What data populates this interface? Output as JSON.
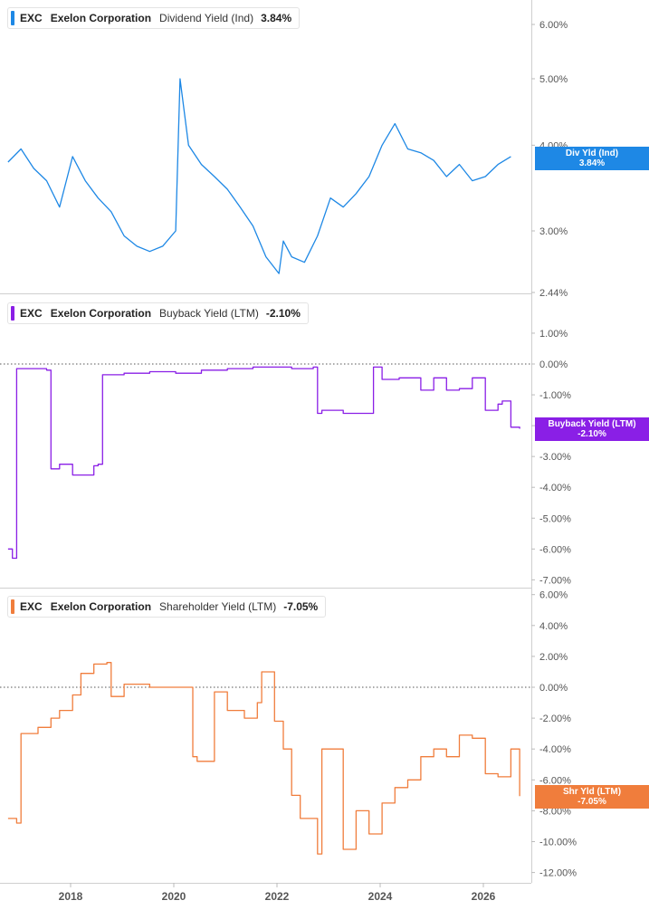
{
  "colors": {
    "dividend": "#1e88e5",
    "buyback": "#8a1fe6",
    "shareholder": "#f07d3c"
  },
  "legends": [
    {
      "ticker": "EXC",
      "company": "Exelon Corporation",
      "metric": "Dividend Yield (Ind)",
      "value": "3.84%"
    },
    {
      "ticker": "EXC",
      "company": "Exelon Corporation",
      "metric": "Buyback Yield (LTM)",
      "value": "-2.10%"
    },
    {
      "ticker": "EXC",
      "company": "Exelon Corporation",
      "metric": "Shareholder Yield (LTM)",
      "value": "-7.05%"
    }
  ],
  "tags": [
    {
      "name": "Div Yld (Ind)",
      "value": "3.84%"
    },
    {
      "name": "Buyback Yield (LTM)",
      "value": "-2.10%"
    },
    {
      "name": "Shr Yld (LTM)",
      "value": "-7.05%"
    }
  ],
  "chart_data": [
    {
      "type": "line",
      "title": "Dividend Yield (Ind)",
      "scale": "log",
      "yticks": [
        "6.00%",
        "5.00%",
        "4.00%",
        "3.00%",
        "2.44%"
      ],
      "ytick_values": [
        6.0,
        5.0,
        4.0,
        3.0,
        2.44
      ],
      "ylim": [
        2.44,
        6.6
      ],
      "x": [
        "2016-10",
        "2017-01",
        "2017-04",
        "2017-07",
        "2017-10",
        "2018-01",
        "2018-04",
        "2018-07",
        "2018-10",
        "2019-01",
        "2019-04",
        "2019-07",
        "2019-10",
        "2020-01",
        "2020-02",
        "2020-04",
        "2020-07",
        "2020-10",
        "2021-01",
        "2021-04",
        "2021-07",
        "2021-10",
        "2022-01",
        "2022-02",
        "2022-04",
        "2022-07",
        "2022-10",
        "2023-01",
        "2023-04",
        "2023-07",
        "2023-10",
        "2024-01",
        "2024-04",
        "2024-07",
        "2024-10",
        "2025-01",
        "2025-04",
        "2025-07",
        "2025-10",
        "2026-01",
        "2026-04",
        "2026-07"
      ],
      "series": [
        {
          "values": [
            3.78,
            3.95,
            3.7,
            3.55,
            3.25,
            3.85,
            3.55,
            3.35,
            3.2,
            2.95,
            2.85,
            2.8,
            2.85,
            3.0,
            5.0,
            4.0,
            3.75,
            3.6,
            3.45,
            3.25,
            3.05,
            2.75,
            2.6,
            2.9,
            2.75,
            2.7,
            2.95,
            3.35,
            3.25,
            3.4,
            3.6,
            4.0,
            4.3,
            3.95,
            3.9,
            3.8,
            3.6,
            3.75,
            3.55,
            3.6,
            3.75,
            3.85
          ]
        }
      ]
    },
    {
      "type": "line",
      "title": "Buyback Yield (LTM)",
      "yticks": [
        "1.00%",
        "0.00%",
        "-1.00%",
        "-2.00%",
        "-3.00%",
        "-4.00%",
        "-5.00%",
        "-6.00%",
        "-7.00%"
      ],
      "ylim": [
        -7.0,
        1.0
      ],
      "zero_line": true,
      "x": [
        "2016-10",
        "2016-11",
        "2016-12",
        "2017-01",
        "2017-07",
        "2017-08",
        "2017-10",
        "2018-01",
        "2018-06",
        "2018-07",
        "2018-08",
        "2019-01",
        "2019-07",
        "2020-01",
        "2020-07",
        "2021-01",
        "2021-07",
        "2022-01",
        "2022-04",
        "2022-09",
        "2022-10",
        "2022-11",
        "2023-04",
        "2023-10",
        "2023-11",
        "2024-01",
        "2024-05",
        "2024-10",
        "2025-01",
        "2025-04",
        "2025-07",
        "2025-10",
        "2026-01",
        "2026-04",
        "2026-05",
        "2026-07",
        "2026-09"
      ],
      "series": [
        {
          "values": [
            -6.0,
            -6.3,
            -0.15,
            -0.15,
            -0.2,
            -3.4,
            -3.25,
            -3.6,
            -3.3,
            -3.25,
            -0.35,
            -0.3,
            -0.25,
            -0.3,
            -0.2,
            -0.15,
            -0.1,
            -0.1,
            -0.15,
            -0.1,
            -1.6,
            -1.5,
            -1.6,
            -1.6,
            -0.1,
            -0.5,
            -0.45,
            -0.85,
            -0.45,
            -0.85,
            -0.8,
            -0.45,
            -1.5,
            -1.3,
            -1.2,
            -2.05,
            -2.1
          ]
        }
      ]
    },
    {
      "type": "line",
      "title": "Shareholder Yield (LTM)",
      "yticks": [
        "6.00%",
        "4.00%",
        "2.00%",
        "0.00%",
        "-2.00%",
        "-4.00%",
        "-6.00%",
        "-8.00%",
        "-10.00%",
        "-12.00%"
      ],
      "ylim": [
        -12.0,
        6.0
      ],
      "zero_line": true,
      "x": [
        "2016-10",
        "2016-12",
        "2017-01",
        "2017-05",
        "2017-08",
        "2017-10",
        "2018-01",
        "2018-03",
        "2018-06",
        "2018-09",
        "2018-10",
        "2019-01",
        "2019-07",
        "2020-01",
        "2020-05",
        "2020-06",
        "2020-10",
        "2021-01",
        "2021-05",
        "2021-08",
        "2021-09",
        "2021-12",
        "2022-02",
        "2022-04",
        "2022-06",
        "2022-10",
        "2022-11",
        "2023-04",
        "2023-07",
        "2023-10",
        "2024-01",
        "2024-04",
        "2024-07",
        "2024-10",
        "2025-01",
        "2025-04",
        "2025-07",
        "2025-10",
        "2026-01",
        "2026-04",
        "2026-07",
        "2026-09"
      ],
      "series": [
        {
          "values": [
            -8.5,
            -8.8,
            -3.0,
            -2.6,
            -2.0,
            -1.5,
            -0.5,
            0.9,
            1.5,
            1.6,
            -0.6,
            0.2,
            0.0,
            0.0,
            -4.5,
            -4.8,
            -0.3,
            -1.5,
            -2.0,
            -1.0,
            1.0,
            -2.2,
            -4.0,
            -7.0,
            -8.5,
            -10.8,
            -4.0,
            -10.5,
            -8.0,
            -9.5,
            -7.5,
            -6.5,
            -6.0,
            -4.5,
            -4.0,
            -4.5,
            -3.1,
            -3.3,
            -5.6,
            -5.8,
            -4.0,
            -7.05
          ]
        }
      ]
    }
  ],
  "xaxis": {
    "ticks": [
      "2018",
      "2020",
      "2022",
      "2024",
      "2026"
    ]
  }
}
